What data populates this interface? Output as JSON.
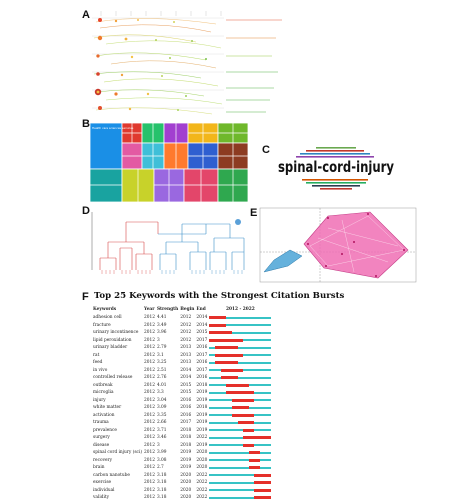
{
  "labels": {
    "a": "A",
    "b": "B",
    "c": "C",
    "d": "D",
    "e": "E",
    "f": "F"
  },
  "wordcloud": {
    "word": "spinal-cord-injury"
  },
  "treemap": {
    "cells": [
      {
        "label": "Health care sciences services",
        "color": "#1a8fe6"
      },
      {
        "label": "",
        "color": "#e03a2f"
      },
      {
        "label": "",
        "color": "#26c26b"
      },
      {
        "label": "",
        "color": "#a23fd0"
      },
      {
        "label": "",
        "color": "#f2b61a"
      },
      {
        "label": "",
        "color": "#6fb82b"
      },
      {
        "label": "",
        "color": "#e35aa3"
      },
      {
        "label": "",
        "color": "#3fbfd8"
      },
      {
        "label": "",
        "color": "#ff7a2e"
      },
      {
        "label": "",
        "color": "#2f5fd0"
      },
      {
        "label": "",
        "color": "#8d3b21"
      },
      {
        "label": "",
        "color": "#19a3a0"
      },
      {
        "label": "",
        "color": "#c8d22a"
      },
      {
        "label": "",
        "color": "#9a68e0"
      },
      {
        "label": "",
        "color": "#e3466a"
      },
      {
        "label": "",
        "color": "#2fa84f"
      }
    ]
  },
  "burst_table": {
    "title": "Top 25 Keywords with the Strongest Citation Bursts",
    "headers": {
      "keywords": "Keywords",
      "year": "Year",
      "strength": "Strength",
      "begin": "Begin",
      "end": "End",
      "range": "2012 - 2022"
    },
    "rows": [
      {
        "keyword": "adhesion cell",
        "year": "2012",
        "strength": "4.41",
        "begin": "2012",
        "end": "2014"
      },
      {
        "keyword": "fracture",
        "year": "2012",
        "strength": "3.49",
        "begin": "2012",
        "end": "2014"
      },
      {
        "keyword": "urinary incontinence",
        "year": "2012",
        "strength": "3.96",
        "begin": "2012",
        "end": "2015"
      },
      {
        "keyword": "lipid peroxidation",
        "year": "2012",
        "strength": "3",
        "begin": "2012",
        "end": "2017"
      },
      {
        "keyword": "urinary bladder",
        "year": "2012",
        "strength": "2.79",
        "begin": "2013",
        "end": "2016"
      },
      {
        "keyword": "rat",
        "year": "2012",
        "strength": "3.1",
        "begin": "2013",
        "end": "2017"
      },
      {
        "keyword": "feed",
        "year": "2012",
        "strength": "3.25",
        "begin": "2013",
        "end": "2016"
      },
      {
        "keyword": "in vivo",
        "year": "2012",
        "strength": "2.51",
        "begin": "2014",
        "end": "2017"
      },
      {
        "keyword": "controlled release",
        "year": "2012",
        "strength": "2.76",
        "begin": "2014",
        "end": "2016"
      },
      {
        "keyword": "outbreak",
        "year": "2012",
        "strength": "4.01",
        "begin": "2015",
        "end": "2018"
      },
      {
        "keyword": "microglia",
        "year": "2012",
        "strength": "3.3",
        "begin": "2015",
        "end": "2019"
      },
      {
        "keyword": "injury",
        "year": "2012",
        "strength": "3.04",
        "begin": "2016",
        "end": "2019"
      },
      {
        "keyword": "white matter",
        "year": "2012",
        "strength": "3.09",
        "begin": "2016",
        "end": "2018"
      },
      {
        "keyword": "activation",
        "year": "2012",
        "strength": "3.35",
        "begin": "2016",
        "end": "2019"
      },
      {
        "keyword": "trauma",
        "year": "2012",
        "strength": "2.66",
        "begin": "2017",
        "end": "2019"
      },
      {
        "keyword": "prevalence",
        "year": "2012",
        "strength": "3.71",
        "begin": "2018",
        "end": "2019"
      },
      {
        "keyword": "surgery",
        "year": "2012",
        "strength": "3.46",
        "begin": "2018",
        "end": "2022"
      },
      {
        "keyword": "disease",
        "year": "2012",
        "strength": "3",
        "begin": "2018",
        "end": "2019"
      },
      {
        "keyword": "spinal cord injury (sci)",
        "year": "2012",
        "strength": "3.99",
        "begin": "2019",
        "end": "2020"
      },
      {
        "keyword": "recovery",
        "year": "2012",
        "strength": "3.08",
        "begin": "2019",
        "end": "2020"
      },
      {
        "keyword": "brain",
        "year": "2012",
        "strength": "2.7",
        "begin": "2019",
        "end": "2020"
      },
      {
        "keyword": "carbon nanotube",
        "year": "2012",
        "strength": "3.18",
        "begin": "2020",
        "end": "2022"
      },
      {
        "keyword": "exercise",
        "year": "2012",
        "strength": "3.18",
        "begin": "2020",
        "end": "2022"
      },
      {
        "keyword": "individual",
        "year": "2012",
        "strength": "3.18",
        "begin": "2020",
        "end": "2022"
      },
      {
        "keyword": "validity",
        "year": "2012",
        "strength": "3.18",
        "begin": "2020",
        "end": "2022"
      }
    ]
  }
}
